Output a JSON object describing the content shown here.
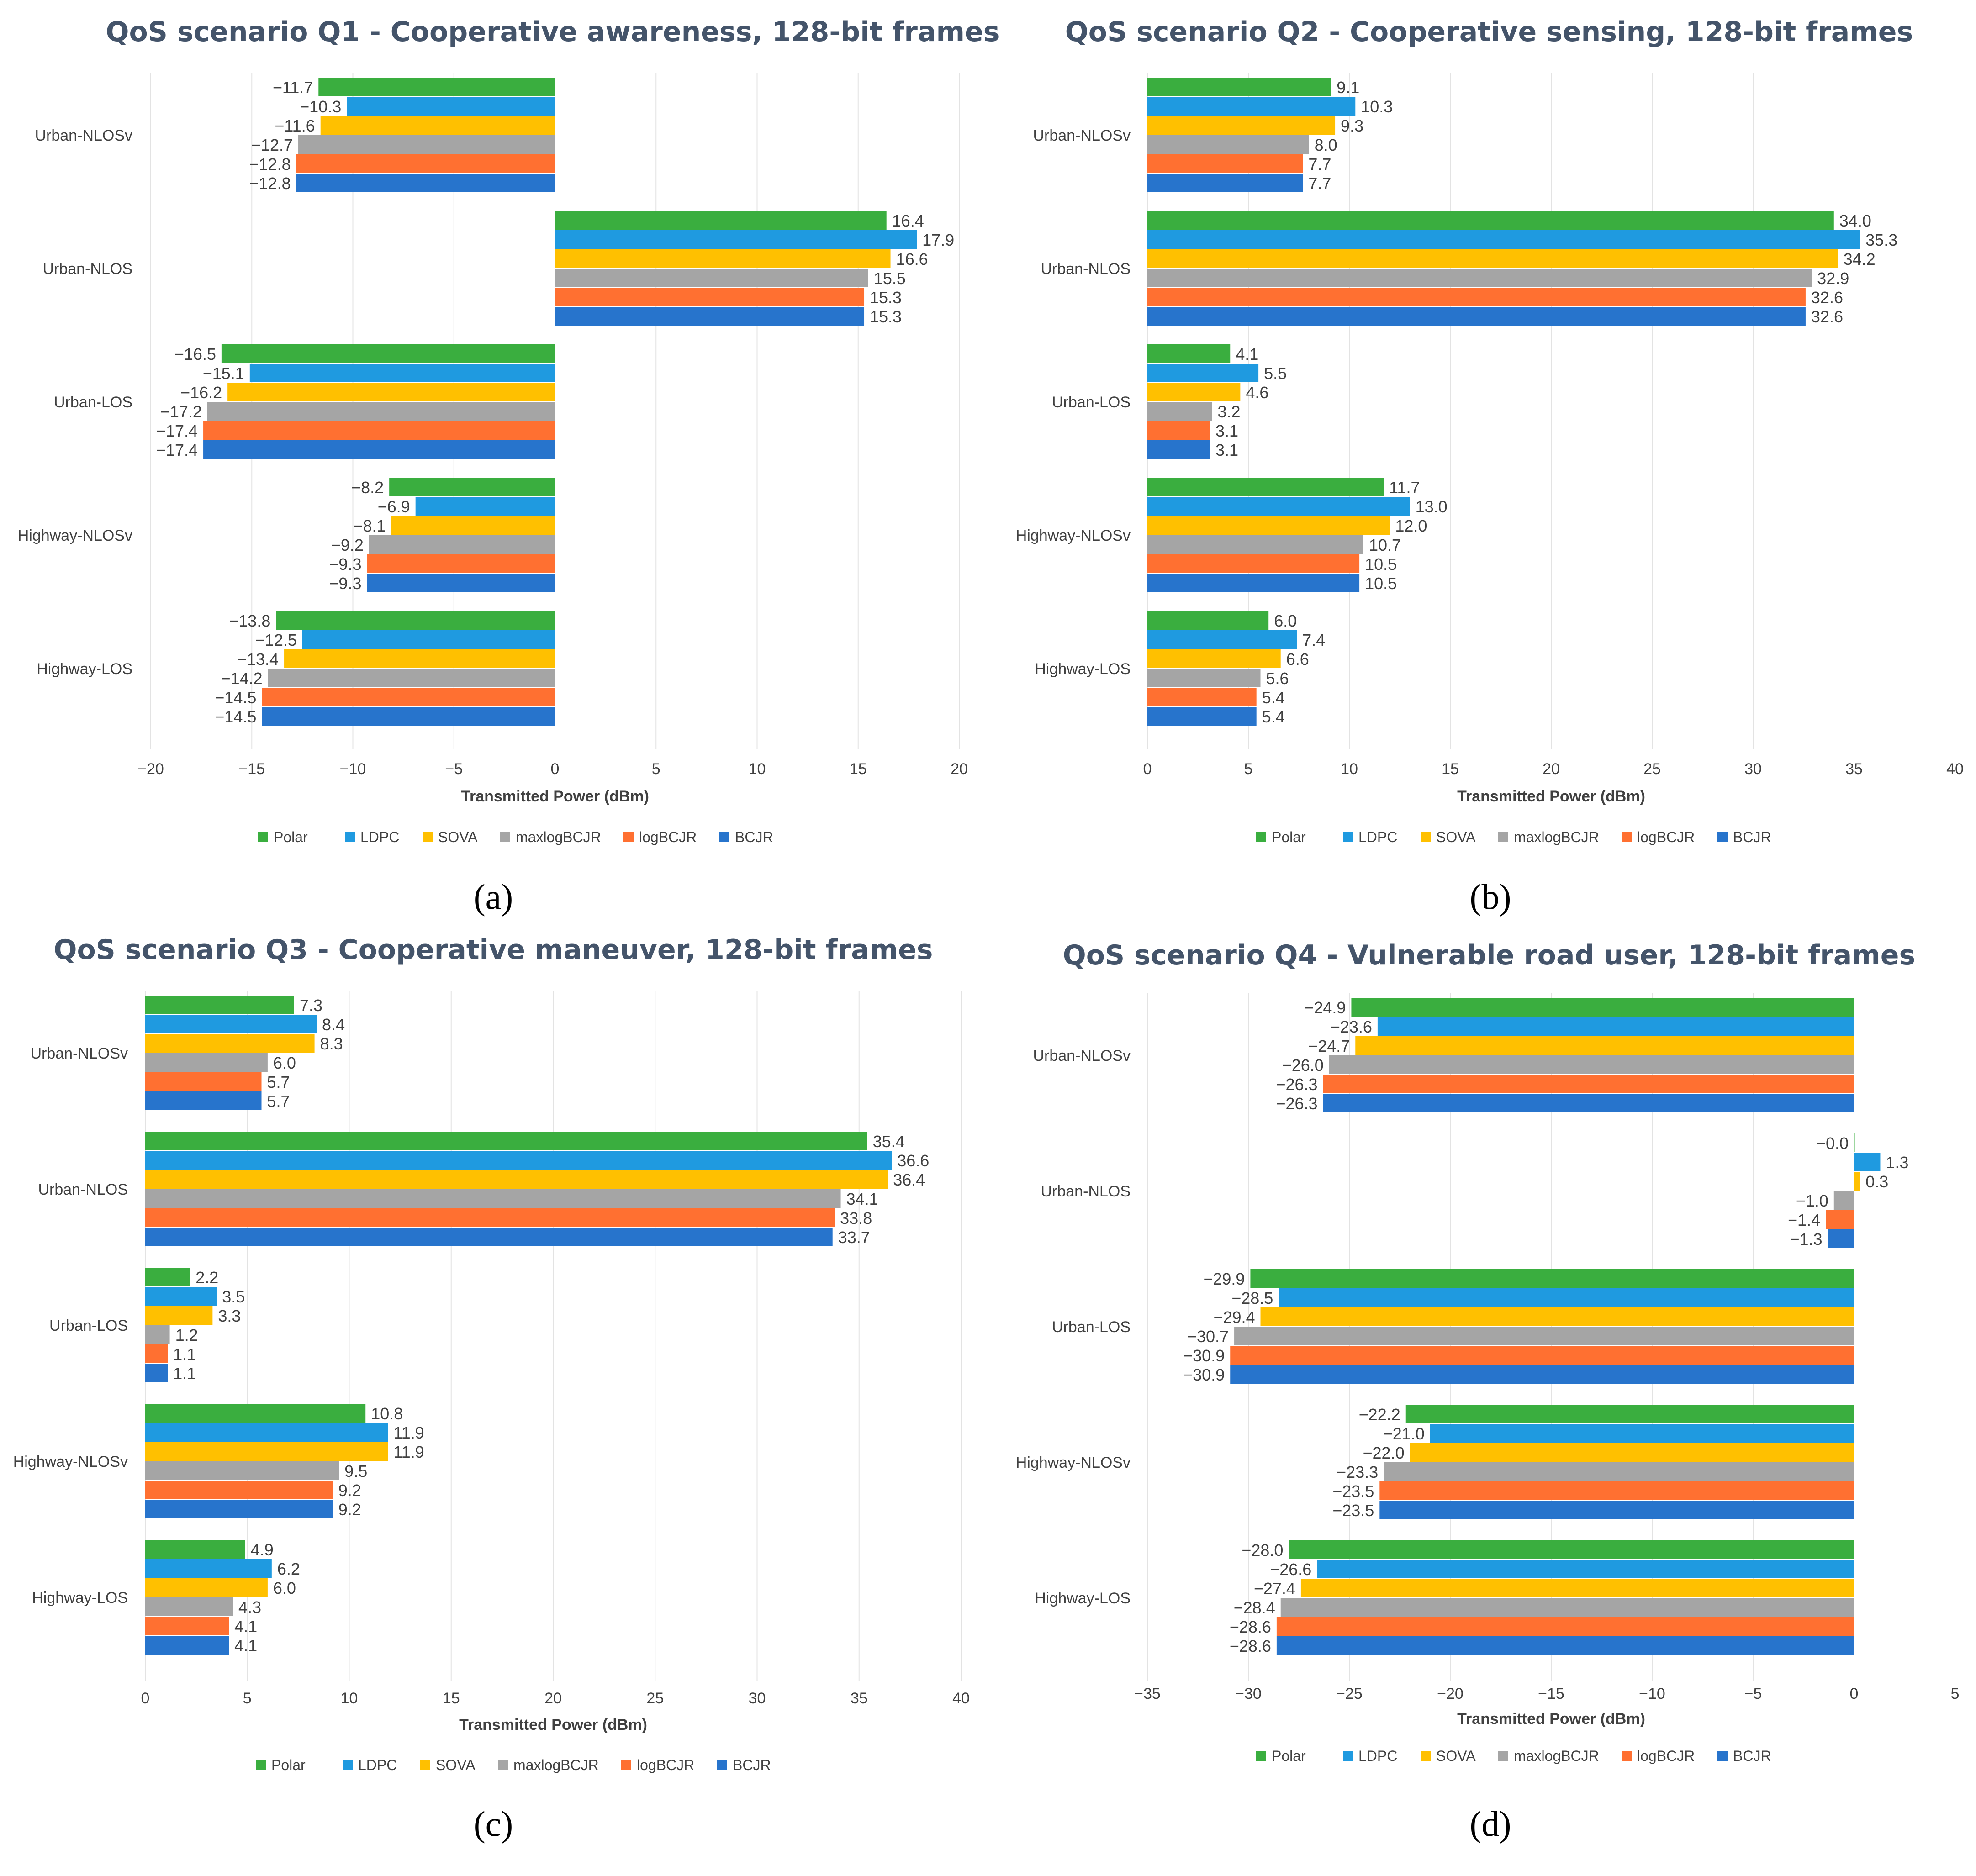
{
  "colors": {
    "Polar": "#3aae3f",
    "LDPC": "#1f9ae0",
    "SOVA": "#ffc000",
    "maxlogBCJR": "#a5a5a5",
    "logBCJR": "#ff7031",
    "BCJR": "#2774cc",
    "title": "#44546a",
    "text": "#404040",
    "grid": "#e3e3e3"
  },
  "chart_data": [
    {
      "type": "bar",
      "orientation": "horizontal",
      "title": "QoS scenario Q1 - Cooperative awareness, 128-bit frames",
      "caption": "(a)",
      "xlabel": "Transmitted Power (dBm)",
      "ylabel": "",
      "xlim": [
        -20,
        20
      ],
      "xticks": [
        -20,
        -15,
        -10,
        -5,
        0,
        5,
        10,
        15,
        20
      ],
      "xtick_labels": [
        "−20",
        "−15",
        "−10",
        "−5",
        "0",
        "5",
        "10",
        "15",
        "20"
      ],
      "grid": true,
      "legend": "bottom",
      "categories": [
        "Urban-NLOSv",
        "Urban-NLOS",
        "Urban-LOS",
        "Highway-NLOSv",
        "Highway-LOS"
      ],
      "series": [
        {
          "name": "Polar",
          "values": [
            -11.7,
            16.4,
            -16.5,
            -8.2,
            -13.8
          ],
          "labels": [
            "−11.7",
            "16.4",
            "−16.5",
            "−8.2",
            "−13.8"
          ]
        },
        {
          "name": "LDPC",
          "values": [
            -10.3,
            17.9,
            -15.1,
            -6.9,
            -12.5
          ],
          "labels": [
            "−10.3",
            "17.9",
            "−15.1",
            "−6.9",
            "−12.5"
          ]
        },
        {
          "name": "SOVA",
          "values": [
            -11.6,
            16.6,
            -16.2,
            -8.1,
            -13.4
          ],
          "labels": [
            "−11.6",
            "16.6",
            "−16.2",
            "−8.1",
            "−13.4"
          ]
        },
        {
          "name": "maxlogBCJR",
          "values": [
            -12.7,
            15.5,
            -17.2,
            -9.2,
            -14.2
          ],
          "labels": [
            "−12.7",
            "15.5",
            "−17.2",
            "−9.2",
            "−14.2"
          ]
        },
        {
          "name": "logBCJR",
          "values": [
            -12.8,
            15.3,
            -17.4,
            -9.3,
            -14.5
          ],
          "labels": [
            "−12.8",
            "15.3",
            "−17.4",
            "−9.3",
            "−14.5"
          ]
        },
        {
          "name": "BCJR",
          "values": [
            -12.8,
            15.3,
            -17.4,
            -9.3,
            -14.5
          ],
          "labels": [
            "−12.8",
            "15.3",
            "−17.4",
            "−9.3",
            "−14.5"
          ]
        }
      ]
    },
    {
      "type": "bar",
      "orientation": "horizontal",
      "title": "QoS scenario Q2 - Cooperative sensing, 128-bit frames",
      "caption": "(b)",
      "xlabel": "Transmitted Power (dBm)",
      "ylabel": "",
      "xlim": [
        0,
        40
      ],
      "xticks": [
        0,
        5,
        10,
        15,
        20,
        25,
        30,
        35,
        40
      ],
      "xtick_labels": [
        "0",
        "5",
        "10",
        "15",
        "20",
        "25",
        "30",
        "35",
        "40"
      ],
      "grid": true,
      "legend": "bottom",
      "categories": [
        "Urban-NLOSv",
        "Urban-NLOS",
        "Urban-LOS",
        "Highway-NLOSv",
        "Highway-LOS"
      ],
      "series": [
        {
          "name": "Polar",
          "values": [
            9.1,
            34.0,
            4.1,
            11.7,
            6.0
          ],
          "labels": [
            "9.1",
            "34.0",
            "4.1",
            "11.7",
            "6.0"
          ]
        },
        {
          "name": "LDPC",
          "values": [
            10.3,
            35.3,
            5.5,
            13.0,
            7.4
          ],
          "labels": [
            "10.3",
            "35.3",
            "5.5",
            "13.0",
            "7.4"
          ]
        },
        {
          "name": "SOVA",
          "values": [
            9.3,
            34.2,
            4.6,
            12.0,
            6.6
          ],
          "labels": [
            "9.3",
            "34.2",
            "4.6",
            "12.0",
            "6.6"
          ]
        },
        {
          "name": "maxlogBCJR",
          "values": [
            8.0,
            32.9,
            3.2,
            10.7,
            5.6
          ],
          "labels": [
            "8.0",
            "32.9",
            "3.2",
            "10.7",
            "5.6"
          ]
        },
        {
          "name": "logBCJR",
          "values": [
            7.7,
            32.6,
            3.1,
            10.5,
            5.4
          ],
          "labels": [
            "7.7",
            "32.6",
            "3.1",
            "10.5",
            "5.4"
          ]
        },
        {
          "name": "BCJR",
          "values": [
            7.7,
            32.6,
            3.1,
            10.5,
            5.4
          ],
          "labels": [
            "7.7",
            "32.6",
            "3.1",
            "10.5",
            "5.4"
          ]
        }
      ]
    },
    {
      "type": "bar",
      "orientation": "horizontal",
      "title": "QoS scenario Q3 - Cooperative maneuver, 128-bit frames",
      "caption": "(c)",
      "xlabel": "Transmitted Power (dBm)",
      "ylabel": "",
      "xlim": [
        0,
        40
      ],
      "xticks": [
        0,
        5,
        10,
        15,
        20,
        25,
        30,
        35,
        40
      ],
      "xtick_labels": [
        "0",
        "5",
        "10",
        "15",
        "20",
        "25",
        "30",
        "35",
        "40"
      ],
      "grid": true,
      "legend": "bottom",
      "categories": [
        "Urban-NLOSv",
        "Urban-NLOS",
        "Urban-LOS",
        "Highway-NLOSv",
        "Highway-LOS"
      ],
      "series": [
        {
          "name": "Polar",
          "values": [
            7.3,
            35.4,
            2.2,
            10.8,
            4.9
          ],
          "labels": [
            "7.3",
            "35.4",
            "2.2",
            "10.8",
            "4.9"
          ]
        },
        {
          "name": "LDPC",
          "values": [
            8.4,
            36.6,
            3.5,
            11.9,
            6.2
          ],
          "labels": [
            "8.4",
            "36.6",
            "3.5",
            "11.9",
            "6.2"
          ]
        },
        {
          "name": "SOVA",
          "values": [
            8.3,
            36.4,
            3.3,
            11.9,
            6.0
          ],
          "labels": [
            "8.3",
            "36.4",
            "3.3",
            "11.9",
            "6.0"
          ]
        },
        {
          "name": "maxlogBCJR",
          "values": [
            6.0,
            34.1,
            1.2,
            9.5,
            4.3
          ],
          "labels": [
            "6.0",
            "34.1",
            "1.2",
            "9.5",
            "4.3"
          ]
        },
        {
          "name": "logBCJR",
          "values": [
            5.7,
            33.8,
            1.1,
            9.2,
            4.1
          ],
          "labels": [
            "5.7",
            "33.8",
            "1.1",
            "9.2",
            "4.1"
          ]
        },
        {
          "name": "BCJR",
          "values": [
            5.7,
            33.7,
            1.1,
            9.2,
            4.1
          ],
          "labels": [
            "5.7",
            "33.7",
            "1.1",
            "9.2",
            "4.1"
          ]
        }
      ]
    },
    {
      "type": "bar",
      "orientation": "horizontal",
      "title": "QoS scenario Q4 - Vulnerable road user, 128-bit frames",
      "caption": "(d)",
      "xlabel": "Transmitted Power (dBm)",
      "ylabel": "",
      "xlim": [
        -35,
        5
      ],
      "xticks": [
        -35,
        -30,
        -25,
        -20,
        -15,
        -10,
        -5,
        0,
        5
      ],
      "xtick_labels": [
        "−35",
        "−30",
        "−25",
        "−20",
        "−15",
        "−10",
        "−5",
        "0",
        "5"
      ],
      "grid": true,
      "legend": "bottom",
      "categories": [
        "Urban-NLOSv",
        "Urban-NLOS",
        "Urban-LOS",
        "Highway-NLOSv",
        "Highway-LOS"
      ],
      "series": [
        {
          "name": "Polar",
          "values": [
            -24.9,
            -0.0,
            -29.9,
            -22.2,
            -28.0
          ],
          "labels": [
            "−24.9",
            "−0.0",
            "−29.9",
            "−22.2",
            "−28.0"
          ]
        },
        {
          "name": "LDPC",
          "values": [
            -23.6,
            1.3,
            -28.5,
            -21.0,
            -26.6
          ],
          "labels": [
            "−23.6",
            "1.3",
            "−28.5",
            "−21.0",
            "−26.6"
          ]
        },
        {
          "name": "SOVA",
          "values": [
            -24.7,
            0.3,
            -29.4,
            -22.0,
            -27.4
          ],
          "labels": [
            "−24.7",
            "0.3",
            "−29.4",
            "−22.0",
            "−27.4"
          ]
        },
        {
          "name": "maxlogBCJR",
          "values": [
            -26.0,
            -1.0,
            -30.7,
            -23.3,
            -28.4
          ],
          "labels": [
            "−26.0",
            "−1.0",
            "−30.7",
            "−23.3",
            "−28.4"
          ]
        },
        {
          "name": "logBCJR",
          "values": [
            -26.3,
            -1.4,
            -30.9,
            -23.5,
            -28.6
          ],
          "labels": [
            "−26.3",
            "−1.4",
            "−30.9",
            "−23.5",
            "−28.6"
          ]
        },
        {
          "name": "BCJR",
          "values": [
            -26.3,
            -1.3,
            -30.9,
            -23.5,
            -28.6
          ],
          "labels": [
            "−26.3",
            "−1.3",
            "−30.9",
            "−23.5",
            "−28.6"
          ]
        }
      ]
    }
  ]
}
